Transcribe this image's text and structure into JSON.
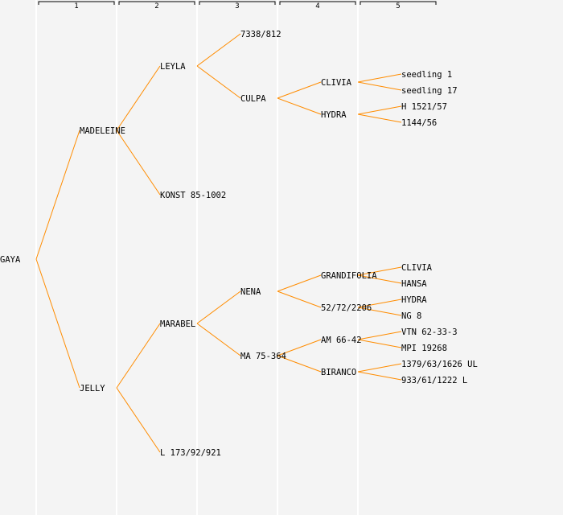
{
  "generations": [
    "1",
    "2",
    "3",
    "4",
    "5"
  ],
  "colors": {
    "edge": "#ff8c00",
    "highlight": "#0000ff",
    "text": "#000000"
  },
  "nodes": [
    {
      "name": "GAYA",
      "gen": 0,
      "parent": null
    },
    {
      "name": "MADELEINE",
      "gen": 1,
      "parent": 0
    },
    {
      "name": "JELLY",
      "gen": 1,
      "parent": 0,
      "highlight": true
    },
    {
      "name": "LEYLA",
      "gen": 2,
      "parent": 1
    },
    {
      "name": "KONST 85-1002",
      "gen": 2,
      "parent": 1
    },
    {
      "name": "MARABEL",
      "gen": 2,
      "parent": 2
    },
    {
      "name": "L 173/92/921",
      "gen": 2,
      "parent": 2
    },
    {
      "name": "7338/812",
      "gen": 3,
      "parent": 3
    },
    {
      "name": "CULPA",
      "gen": 3,
      "parent": 3
    },
    {
      "name": "NENA",
      "gen": 3,
      "parent": 5
    },
    {
      "name": "MA 75-364",
      "gen": 3,
      "parent": 5
    },
    {
      "name": "CLIVIA",
      "gen": 4,
      "parent": 8
    },
    {
      "name": "HYDRA",
      "gen": 4,
      "parent": 8
    },
    {
      "name": "GRANDIFOLIA",
      "gen": 4,
      "parent": 9
    },
    {
      "name": "52/72/2206",
      "gen": 4,
      "parent": 9
    },
    {
      "name": "AM 66-42",
      "gen": 4,
      "parent": 10
    },
    {
      "name": "BIRANCO",
      "gen": 4,
      "parent": 10
    },
    {
      "name": "seedling 1",
      "gen": 5,
      "parent": 11
    },
    {
      "name": "seedling 17",
      "gen": 5,
      "parent": 11
    },
    {
      "name": "H 1521/57",
      "gen": 5,
      "parent": 12
    },
    {
      "name": "1144/56",
      "gen": 5,
      "parent": 12
    },
    {
      "name": "CLIVIA",
      "gen": 5,
      "parent": 13
    },
    {
      "name": "HANSA",
      "gen": 5,
      "parent": 13
    },
    {
      "name": "HYDRA",
      "gen": 5,
      "parent": 14
    },
    {
      "name": "NG 8",
      "gen": 5,
      "parent": 14
    },
    {
      "name": "VTN 62-33-3",
      "gen": 5,
      "parent": 15
    },
    {
      "name": "MPI 19268",
      "gen": 5,
      "parent": 15
    },
    {
      "name": "1379/63/1626 UL",
      "gen": 5,
      "parent": 16
    },
    {
      "name": "933/61/1222 L",
      "gen": 5,
      "parent": 16
    }
  ]
}
